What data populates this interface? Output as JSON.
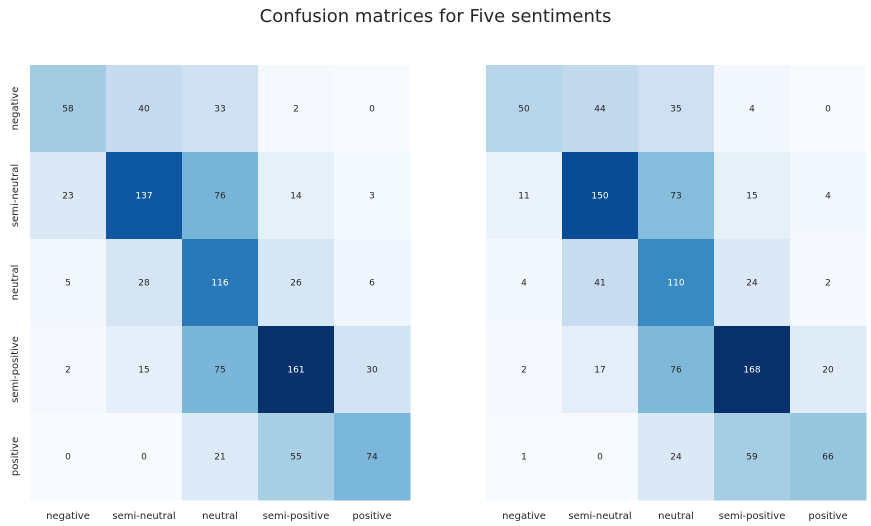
{
  "chart_data": {
    "type": "heatmap",
    "title": "Confusion matrices for Five sentiments",
    "colormap": "Blues",
    "matrices": [
      {
        "x_categories": [
          "negative",
          "semi-neutral",
          "neutral",
          "semi-positive",
          "positive"
        ],
        "y_categories": [
          "negative",
          "semi-neutral",
          "neutral",
          "semi-positive",
          "positive"
        ],
        "values": [
          [
            58,
            40,
            33,
            2,
            0
          ],
          [
            23,
            137,
            76,
            14,
            3
          ],
          [
            5,
            28,
            116,
            26,
            6
          ],
          [
            2,
            15,
            75,
            161,
            30
          ],
          [
            0,
            0,
            21,
            55,
            74
          ]
        ]
      },
      {
        "x_categories": [
          "negative",
          "semi-neutral",
          "neutral",
          "semi-positive",
          "positive"
        ],
        "y_categories": [],
        "values": [
          [
            50,
            44,
            35,
            4,
            0
          ],
          [
            11,
            150,
            73,
            15,
            4
          ],
          [
            4,
            41,
            110,
            24,
            2
          ],
          [
            2,
            17,
            76,
            168,
            20
          ],
          [
            1,
            0,
            24,
            59,
            66
          ]
        ]
      }
    ]
  }
}
